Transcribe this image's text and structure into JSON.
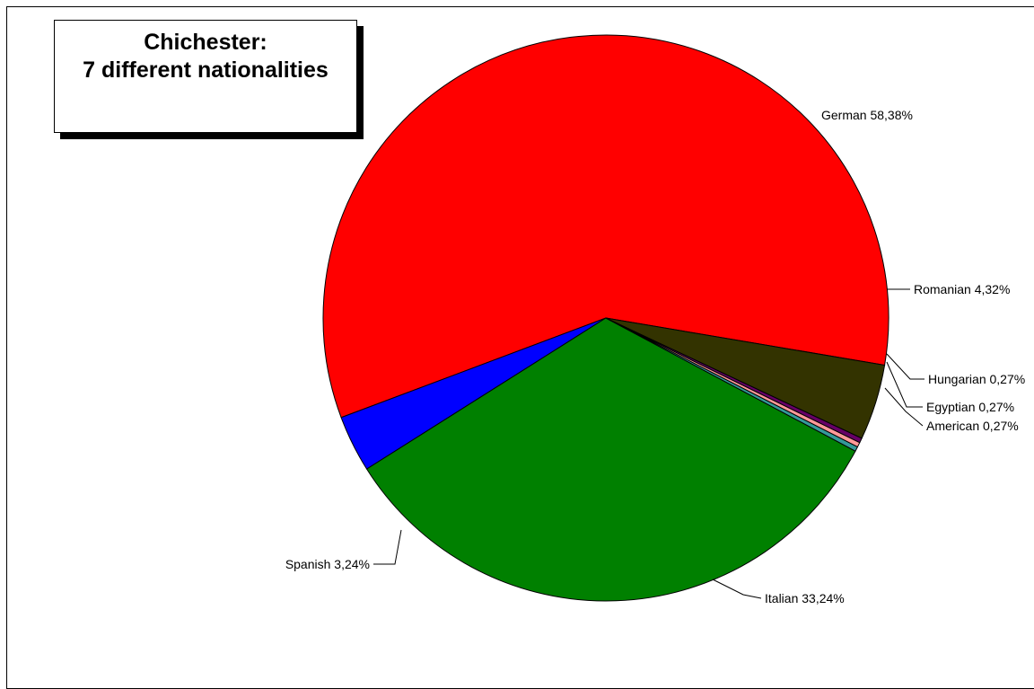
{
  "chart_data": {
    "type": "pie",
    "title": [
      "Chichester:",
      "7 different nationalities"
    ],
    "start_angle_deg": -9.6,
    "direction": "counterclockwise",
    "slices": [
      {
        "name": "German",
        "value": 58.38,
        "label": "German 58,38%",
        "color": "#ff0000"
      },
      {
        "name": "Spanish",
        "value": 3.24,
        "label": "Spanish 3,24%",
        "color": "#0000ff"
      },
      {
        "name": "Italian",
        "value": 33.24,
        "label": "Italian 33,24%",
        "color": "#008000"
      },
      {
        "name": "American",
        "value": 0.27,
        "label": "American 0,27%",
        "color": "#339999"
      },
      {
        "name": "Egyptian",
        "value": 0.27,
        "label": "Egyptian 0,27%",
        "color": "#ff9999"
      },
      {
        "name": "Hungarian",
        "value": 0.27,
        "label": "Hungarian 0,27%",
        "color": "#660066"
      },
      {
        "name": "Romanian",
        "value": 4.32,
        "label": "Romanian 4,32%",
        "color": "#333300"
      }
    ]
  }
}
